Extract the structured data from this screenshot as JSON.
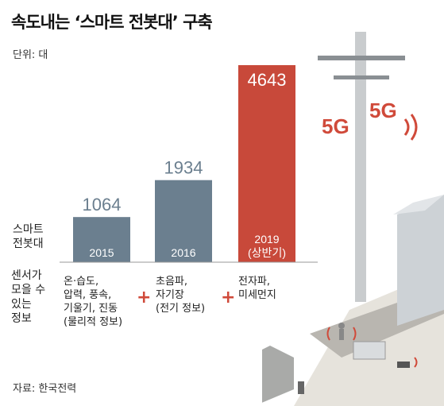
{
  "title": "속도내는 ‘스마트 전봇대’ 구축",
  "unit": "단위: 대",
  "source": "자료: 한국전력",
  "side_label": [
    "스마트",
    "전봇대"
  ],
  "info_header": [
    "센서가",
    "모을 수",
    "있는",
    "정보"
  ],
  "info_columns": [
    [
      "온·습도,",
      "압력, 풍속,",
      "기울기, 진동",
      "(물리적 정보)"
    ],
    [
      "초음파,",
      "자기장",
      "(전기 정보)"
    ],
    [
      "전자파,",
      "미세먼지"
    ]
  ],
  "illustration_text": [
    "5G",
    "5G"
  ],
  "colors": {
    "bar_default": "#6b7f8f",
    "bar_highlight": "#c8493a",
    "accent": "#d04a3a"
  },
  "chart_data": {
    "type": "bar",
    "categories": [
      "2015",
      "2016",
      "2019\n(상반기)"
    ],
    "values": [
      1064,
      1934,
      4643
    ],
    "ylim": [
      0,
      4643
    ],
    "xlabel": "",
    "ylabel": ""
  }
}
